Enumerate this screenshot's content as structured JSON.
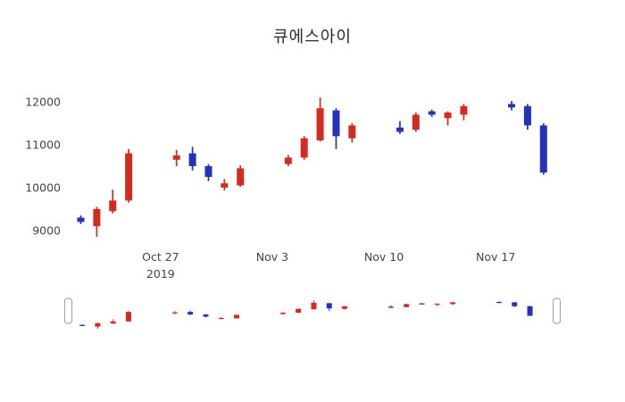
{
  "chart_data": {
    "type": "candlestick",
    "title": "큐에스아이",
    "up_color": "#d42a20",
    "down_color": "#2331bb",
    "text_color": "#444444",
    "legend": "none",
    "grid": "off",
    "has_rangeslider": true,
    "x_day_span": 31,
    "x_tick_labels": [
      {
        "day": 5,
        "lines": [
          "Oct 27",
          "2019"
        ]
      },
      {
        "day": 12,
        "lines": [
          "Nov 3"
        ]
      },
      {
        "day": 19,
        "lines": [
          "Nov 10"
        ]
      },
      {
        "day": 26,
        "lines": [
          "Nov 17"
        ]
      }
    ],
    "y_ticks": [
      9000,
      10000,
      11000,
      12000
    ],
    "ylim": [
      8750,
      12250
    ],
    "candles": [
      {
        "day": 0,
        "open": 9300,
        "high": 9350,
        "low": 9150,
        "close": 9200
      },
      {
        "day": 1,
        "open": 9100,
        "high": 9550,
        "low": 8850,
        "close": 9500
      },
      {
        "day": 2,
        "open": 9450,
        "high": 9950,
        "low": 9400,
        "close": 9700
      },
      {
        "day": 3,
        "open": 9700,
        "high": 10900,
        "low": 9650,
        "close": 10800
      },
      {
        "day": 6,
        "open": 10650,
        "high": 10880,
        "low": 10500,
        "close": 10750
      },
      {
        "day": 7,
        "open": 10800,
        "high": 10950,
        "low": 10400,
        "close": 10500
      },
      {
        "day": 8,
        "open": 10500,
        "high": 10550,
        "low": 10150,
        "close": 10250
      },
      {
        "day": 9,
        "open": 10000,
        "high": 10200,
        "low": 9930,
        "close": 10100
      },
      {
        "day": 10,
        "open": 10050,
        "high": 10520,
        "low": 10020,
        "close": 10450
      },
      {
        "day": 13,
        "open": 10550,
        "high": 10760,
        "low": 10500,
        "close": 10700
      },
      {
        "day": 14,
        "open": 10700,
        "high": 11200,
        "low": 10650,
        "close": 11150
      },
      {
        "day": 15,
        "open": 11100,
        "high": 12100,
        "low": 11080,
        "close": 11850
      },
      {
        "day": 16,
        "open": 11800,
        "high": 11850,
        "low": 10900,
        "close": 11200
      },
      {
        "day": 17,
        "open": 11150,
        "high": 11500,
        "low": 11050,
        "close": 11450
      },
      {
        "day": 20,
        "open": 11400,
        "high": 11550,
        "low": 11250,
        "close": 11300
      },
      {
        "day": 21,
        "open": 11350,
        "high": 11750,
        "low": 11300,
        "close": 11700
      },
      {
        "day": 22,
        "open": 11780,
        "high": 11820,
        "low": 11650,
        "close": 11700
      },
      {
        "day": 23,
        "open": 11620,
        "high": 11780,
        "low": 11450,
        "close": 11750
      },
      {
        "day": 24,
        "open": 11700,
        "high": 11950,
        "low": 11570,
        "close": 11900
      },
      {
        "day": 27,
        "open": 11950,
        "high": 12020,
        "low": 11800,
        "close": 11870
      },
      {
        "day": 28,
        "open": 11900,
        "high": 11950,
        "low": 11350,
        "close": 11450
      },
      {
        "day": 29,
        "open": 11450,
        "high": 11500,
        "low": 10300,
        "close": 10350
      }
    ]
  }
}
